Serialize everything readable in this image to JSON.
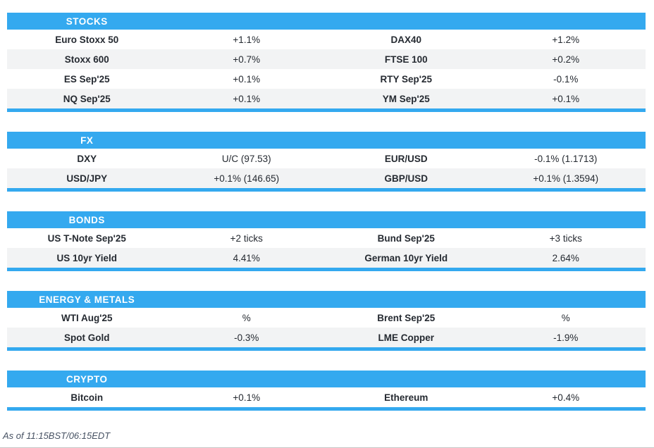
{
  "page": {
    "accent_color": "#34A9EF",
    "stripe_color": "#F2F3F4",
    "footer_note": "As of 11:15BST/06:15EDT"
  },
  "sections": [
    {
      "title": "STOCKS",
      "rows": [
        [
          "Euro Stoxx 50",
          "+1.1%",
          "DAX40",
          "+1.2%"
        ],
        [
          "Stoxx 600",
          "+0.7%",
          "FTSE 100",
          "+0.2%"
        ],
        [
          "ES Sep'25",
          "+0.1%",
          "RTY Sep'25",
          "-0.1%"
        ],
        [
          "NQ Sep'25",
          "+0.1%",
          "YM Sep'25",
          "+0.1%"
        ]
      ]
    },
    {
      "title": "FX",
      "rows": [
        [
          "DXY",
          "U/C (97.53)",
          "EUR/USD",
          "-0.1% (1.1713)"
        ],
        [
          "USD/JPY",
          "+0.1% (146.65)",
          "GBP/USD",
          "+0.1% (1.3594)"
        ]
      ]
    },
    {
      "title": "BONDS",
      "rows": [
        [
          "US T-Note Sep'25",
          "+2 ticks",
          "Bund Sep'25",
          "+3 ticks"
        ],
        [
          "US 10yr Yield",
          "4.41%",
          "German 10yr Yield",
          "2.64%"
        ]
      ]
    },
    {
      "title": "ENERGY & METALS",
      "rows": [
        [
          "WTI Aug'25",
          "%",
          "Brent Sep'25",
          "%"
        ],
        [
          "Spot Gold",
          "-0.3%",
          "LME Copper",
          "-1.9%"
        ]
      ]
    },
    {
      "title": "CRYPTO",
      "rows": [
        [
          "Bitcoin",
          "+0.1%",
          "Ethereum",
          "+0.4%"
        ]
      ]
    }
  ]
}
